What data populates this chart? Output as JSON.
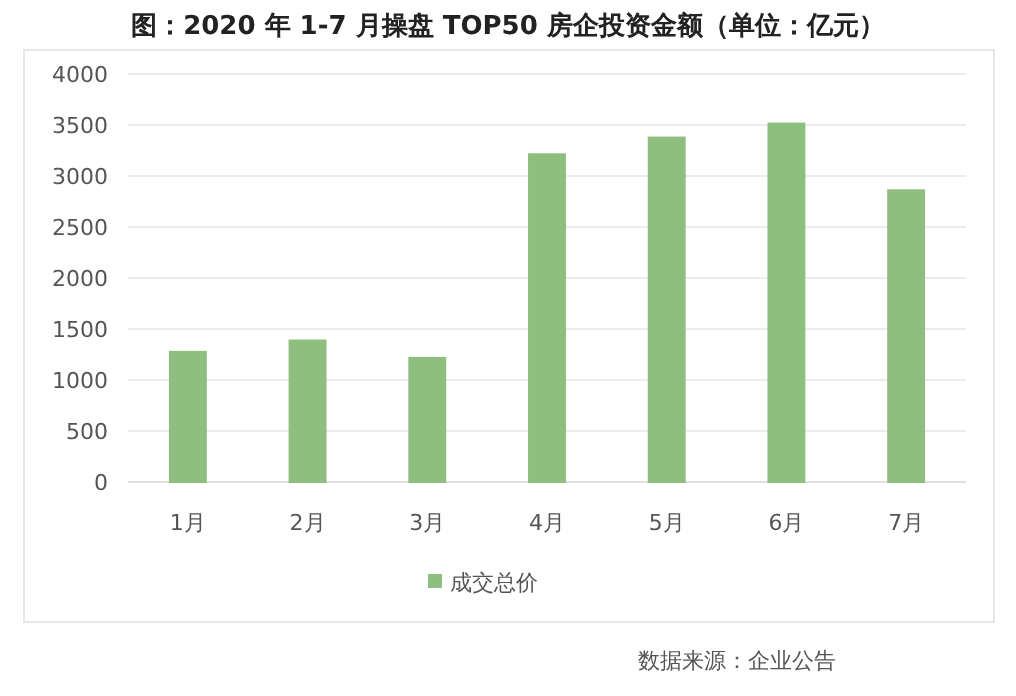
{
  "chart_data": {
    "type": "bar",
    "title": "图：2020 年 1-7 月操盘 TOP50 房企投资金额（单位：亿元）",
    "categories": [
      "1月",
      "2月",
      "3月",
      "4月",
      "5月",
      "6月",
      "7月"
    ],
    "series": [
      {
        "name": "成交总价",
        "color": "#8fbf7f",
        "values": [
          1276,
          1387,
          1217,
          3213,
          3377,
          3514,
          2860
        ]
      }
    ],
    "ylim": [
      0,
      4000
    ],
    "yticks": [
      0,
      500,
      1000,
      1500,
      2000,
      2500,
      3000,
      3500,
      4000
    ],
    "grid": "y",
    "legend": "bottom",
    "annotations": [
      "数据来源：企业公告"
    ]
  }
}
